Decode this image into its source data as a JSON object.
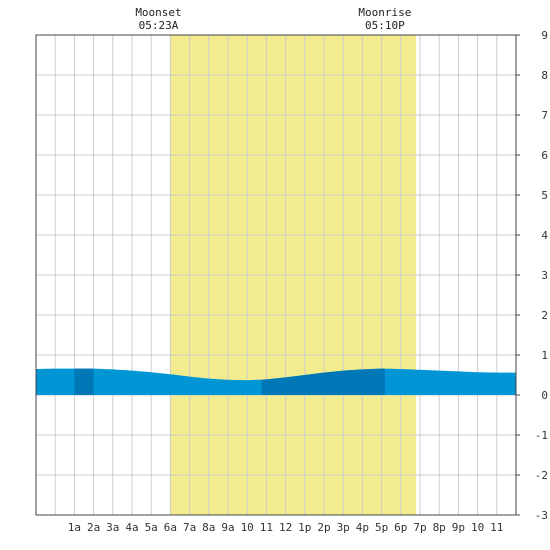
{
  "colors": {
    "daylight": "#f3ec8e",
    "tide_fill": "#0096d6",
    "tide_dark": "#0078b8",
    "grid": "#cccccc",
    "frame": "#444444",
    "background": "#ffffff"
  },
  "annotations": {
    "moonset": {
      "label": "Moonset",
      "time": "05:23A",
      "hour": 5.38
    },
    "moonrise": {
      "label": "Moonrise",
      "time": "05:10P",
      "hour": 17.17
    }
  },
  "chart_data": {
    "type": "area",
    "title": "",
    "xlabel": "",
    "ylabel": "",
    "xlim": [
      -1,
      24
    ],
    "ylim": [
      -3,
      9
    ],
    "grid": true,
    "x_tick_labels": [
      "1a",
      "2a",
      "3a",
      "4a",
      "5a",
      "6a",
      "7a",
      "8a",
      "9a",
      "10",
      "11",
      "12",
      "1p",
      "2p",
      "3p",
      "4p",
      "5p",
      "6p",
      "7p",
      "8p",
      "9p",
      "10",
      "11"
    ],
    "y_tick_labels": [
      "9",
      "8",
      "7",
      "6",
      "5",
      "4",
      "3",
      "2",
      "1",
      "0",
      "-1",
      "-2",
      "-3"
    ],
    "daylight_span": [
      6.0,
      18.8
    ],
    "dark_bands": [
      [
        1,
        2
      ],
      [
        10.75,
        17.17
      ]
    ],
    "series": [
      {
        "x": [
          -1,
          0,
          1,
          2,
          3,
          4,
          5,
          6,
          7,
          8,
          9,
          10,
          11,
          12,
          13,
          14,
          15,
          16,
          17,
          18,
          19,
          20,
          21,
          22,
          23,
          24
        ],
        "values": [
          0.65,
          0.66,
          0.66,
          0.66,
          0.64,
          0.61,
          0.57,
          0.52,
          0.46,
          0.41,
          0.38,
          0.37,
          0.39,
          0.44,
          0.5,
          0.56,
          0.61,
          0.64,
          0.66,
          0.65,
          0.63,
          0.61,
          0.59,
          0.57,
          0.56,
          0.56
        ]
      }
    ]
  }
}
